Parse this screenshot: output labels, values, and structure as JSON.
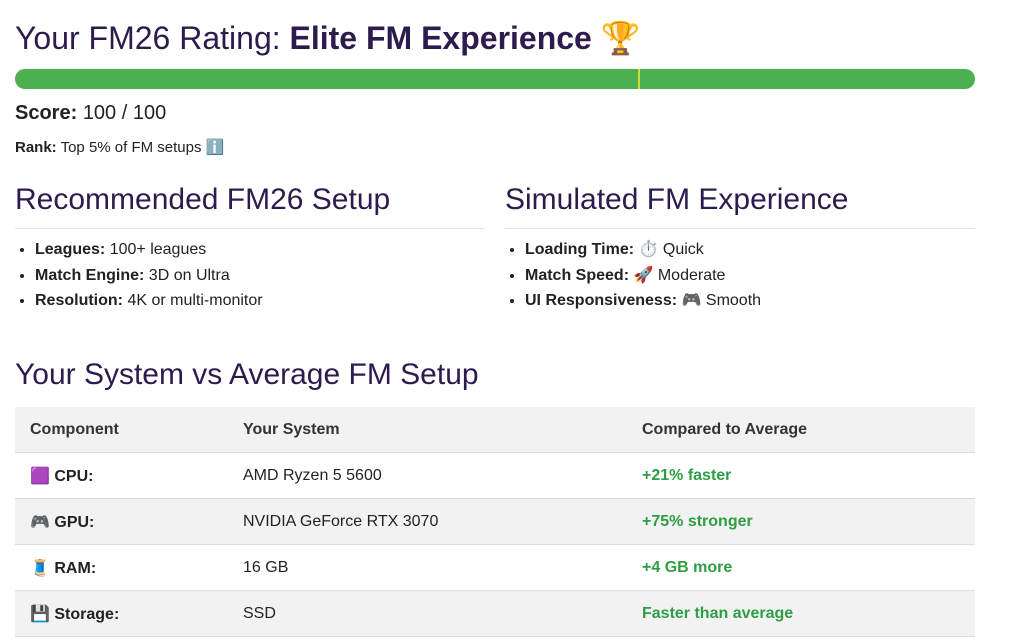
{
  "header": {
    "title_prefix": "Your FM26 Rating:",
    "title_strong": "Elite FM Experience",
    "title_icon": "🏆"
  },
  "score": {
    "label": "Score:",
    "value": "100 / 100"
  },
  "rank": {
    "label": "Rank:",
    "value": "Top 5% of FM setups",
    "icon": "ℹ️"
  },
  "recommended": {
    "title": "Recommended FM26 Setup",
    "items": [
      {
        "label": "Leagues:",
        "value": "100+ leagues"
      },
      {
        "label": "Match Engine:",
        "value": "3D on Ultra"
      },
      {
        "label": "Resolution:",
        "value": "4K or multi-monitor"
      }
    ]
  },
  "simulated": {
    "title": "Simulated FM Experience",
    "items": [
      {
        "label": "Loading Time:",
        "icon": "⏱️",
        "value": "Quick"
      },
      {
        "label": "Match Speed:",
        "icon": "🚀",
        "value": "Moderate"
      },
      {
        "label": "UI Responsiveness:",
        "icon": "🎮",
        "value": "Smooth"
      }
    ]
  },
  "comparison": {
    "title": "Your System vs Average FM Setup",
    "table": {
      "headers": [
        "Component",
        "Your System",
        "Compared to Average"
      ],
      "rows": [
        [
          "🟪",
          "CPU:",
          "AMD Ryzen 5 5600",
          "+21% faster"
        ],
        [
          "🎮",
          "GPU:",
          "NVIDIA GeForce RTX 3070",
          "+75% stronger"
        ],
        [
          "🧵",
          "RAM:",
          "16 GB",
          "+4 GB more"
        ],
        [
          "💾",
          "Storage:",
          "SSD",
          "Faster than average"
        ]
      ]
    }
  }
}
